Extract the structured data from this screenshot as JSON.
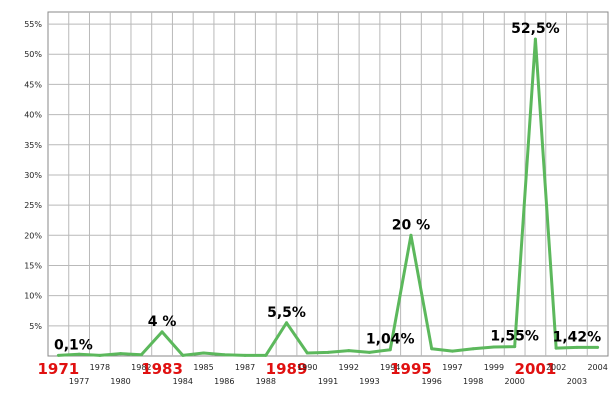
{
  "chart_data": {
    "type": "line",
    "title": "",
    "xlabel": "",
    "ylabel": "",
    "ylim": [
      0,
      57
    ],
    "grid": true,
    "line_color": "#5cb85c",
    "highlight_label_color": "#e01010",
    "y_ticks": [
      "5%",
      "10%",
      "15%",
      "20%",
      "25%",
      "30%",
      "35%",
      "40%",
      "45%",
      "50%",
      "55%"
    ],
    "x": [
      "1971",
      "1977",
      "1978",
      "1980",
      "1982",
      "1983",
      "1984",
      "1985",
      "1986",
      "1987",
      "1988",
      "1989",
      "1990",
      "1991",
      "1992",
      "1993",
      "1994",
      "1995",
      "1996",
      "1997",
      "1998",
      "1999",
      "2000",
      "2001",
      "2002",
      "2003",
      "2004"
    ],
    "series": [
      {
        "values": [
          0.1,
          0.3,
          0.1,
          0.4,
          0.2,
          4.0,
          0.1,
          0.5,
          0.2,
          0.1,
          0.1,
          5.5,
          0.5,
          0.6,
          0.9,
          0.6,
          1.04,
          20.0,
          1.2,
          0.8,
          1.2,
          1.5,
          1.55,
          52.5,
          1.3,
          1.42,
          1.42
        ]
      }
    ],
    "highlighted_years": [
      "1971",
      "1983",
      "1989",
      "1995",
      "2001"
    ],
    "annotations": [
      {
        "text": "0,1%",
        "x": "1971",
        "y": 0.1
      },
      {
        "text": "4 %",
        "x": "1983",
        "y": 4.0
      },
      {
        "text": "5,5%",
        "x": "1989",
        "y": 5.5
      },
      {
        "text": "1,04%",
        "x": "1994",
        "y": 1.04
      },
      {
        "text": "20 %",
        "x": "1995",
        "y": 20.0
      },
      {
        "text": "1,55%",
        "x": "2000",
        "y": 1.55
      },
      {
        "text": "52,5%",
        "x": "2001",
        "y": 52.5
      },
      {
        "text": "1,42%",
        "x": "2003",
        "y": 1.42
      }
    ]
  }
}
